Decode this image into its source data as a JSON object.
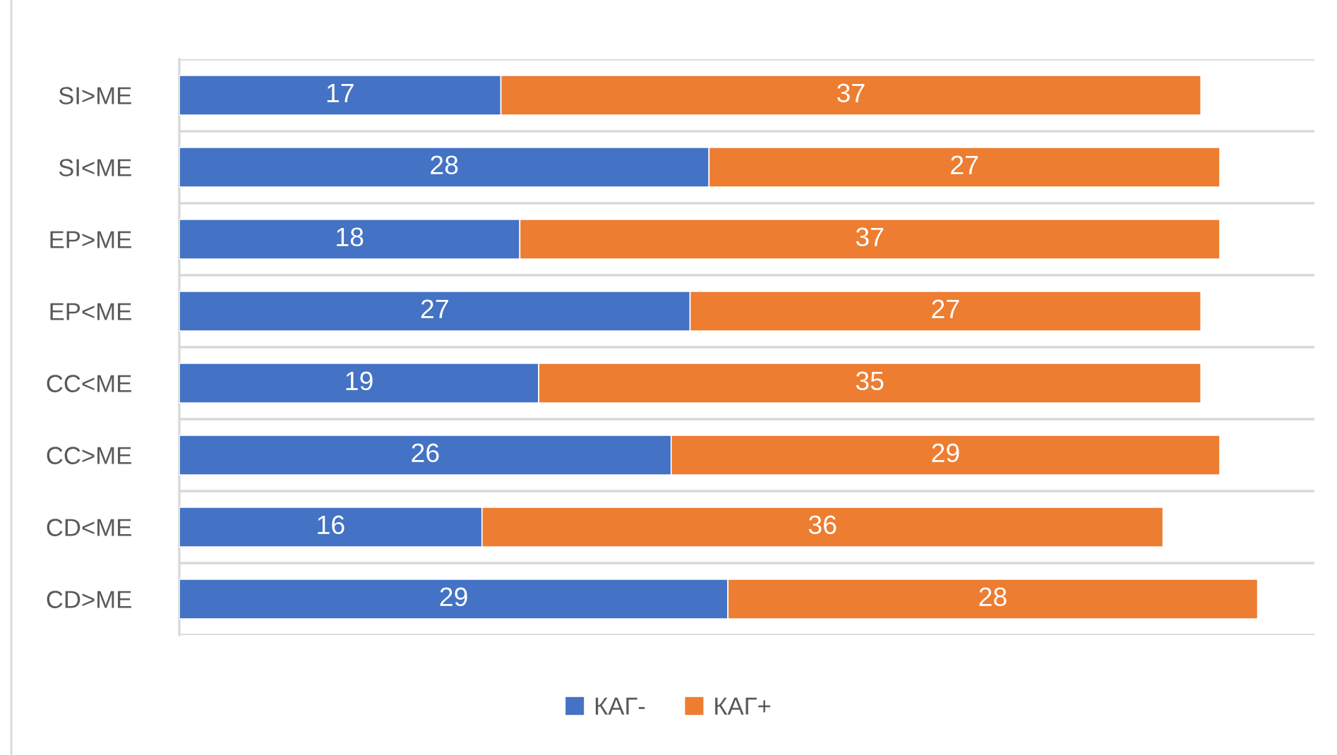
{
  "chart_data": {
    "type": "bar",
    "orientation": "horizontal",
    "stacked": true,
    "categories": [
      "SI>ME",
      "SI<ME",
      "EP>ME",
      "EP<ME",
      "CC<ME",
      "CC>ME",
      "CD<ME",
      "CD>ME"
    ],
    "series": [
      {
        "name": "КАГ-",
        "color": "#4472c4",
        "values": [
          17,
          28,
          18,
          27,
          19,
          26,
          16,
          29
        ]
      },
      {
        "name": "КАГ+",
        "color": "#ed7d31",
        "values": [
          37,
          27,
          37,
          27,
          35,
          29,
          36,
          28
        ]
      }
    ],
    "xlim": [
      0,
      60
    ],
    "tick_labels": "y",
    "data_labels": true,
    "grid": "y",
    "legend": "bottom"
  }
}
